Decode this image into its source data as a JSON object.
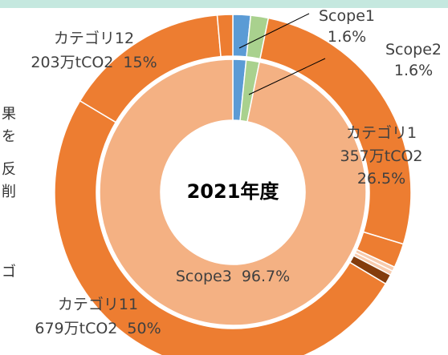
{
  "chart_data": {
    "type": "donut",
    "center_label": "2021年度",
    "background_text": [
      "果",
      "を",
      "反",
      "削",
      "ゴ"
    ],
    "inner": {
      "categories": [
        "Scope1",
        "Scope2",
        "Scope3"
      ],
      "values": [
        1.6,
        1.6,
        96.7
      ],
      "value_labels": [
        "1.6%",
        "1.6%",
        "96.7%"
      ],
      "colors": [
        "#5b9bd5",
        "#a9d18e",
        "#f4b183"
      ]
    },
    "outer": {
      "categories": [
        null,
        null,
        "カテゴリ1",
        null,
        null,
        null,
        null,
        "カテゴリ11",
        "カテゴリ12",
        null
      ],
      "amounts": [
        null,
        null,
        "357万tCO2",
        null,
        null,
        null,
        null,
        "679万tCO2",
        "203万tCO2",
        null
      ],
      "values": [
        1.6,
        1.6,
        26.5,
        2.2,
        0.4,
        0.4,
        0.9,
        50,
        15,
        1.4
      ],
      "value_labels": [
        null,
        null,
        "26.5%",
        null,
        null,
        null,
        null,
        "50%",
        "15%",
        null
      ],
      "colors": [
        "#5b9bd5",
        "#a9d18e",
        "#ed7d31",
        "#ed7d31",
        "#f8cbad",
        "#f8cbad",
        "#843c0c",
        "#ed7d31",
        "#ed7d31",
        "#ed7d31"
      ]
    }
  }
}
